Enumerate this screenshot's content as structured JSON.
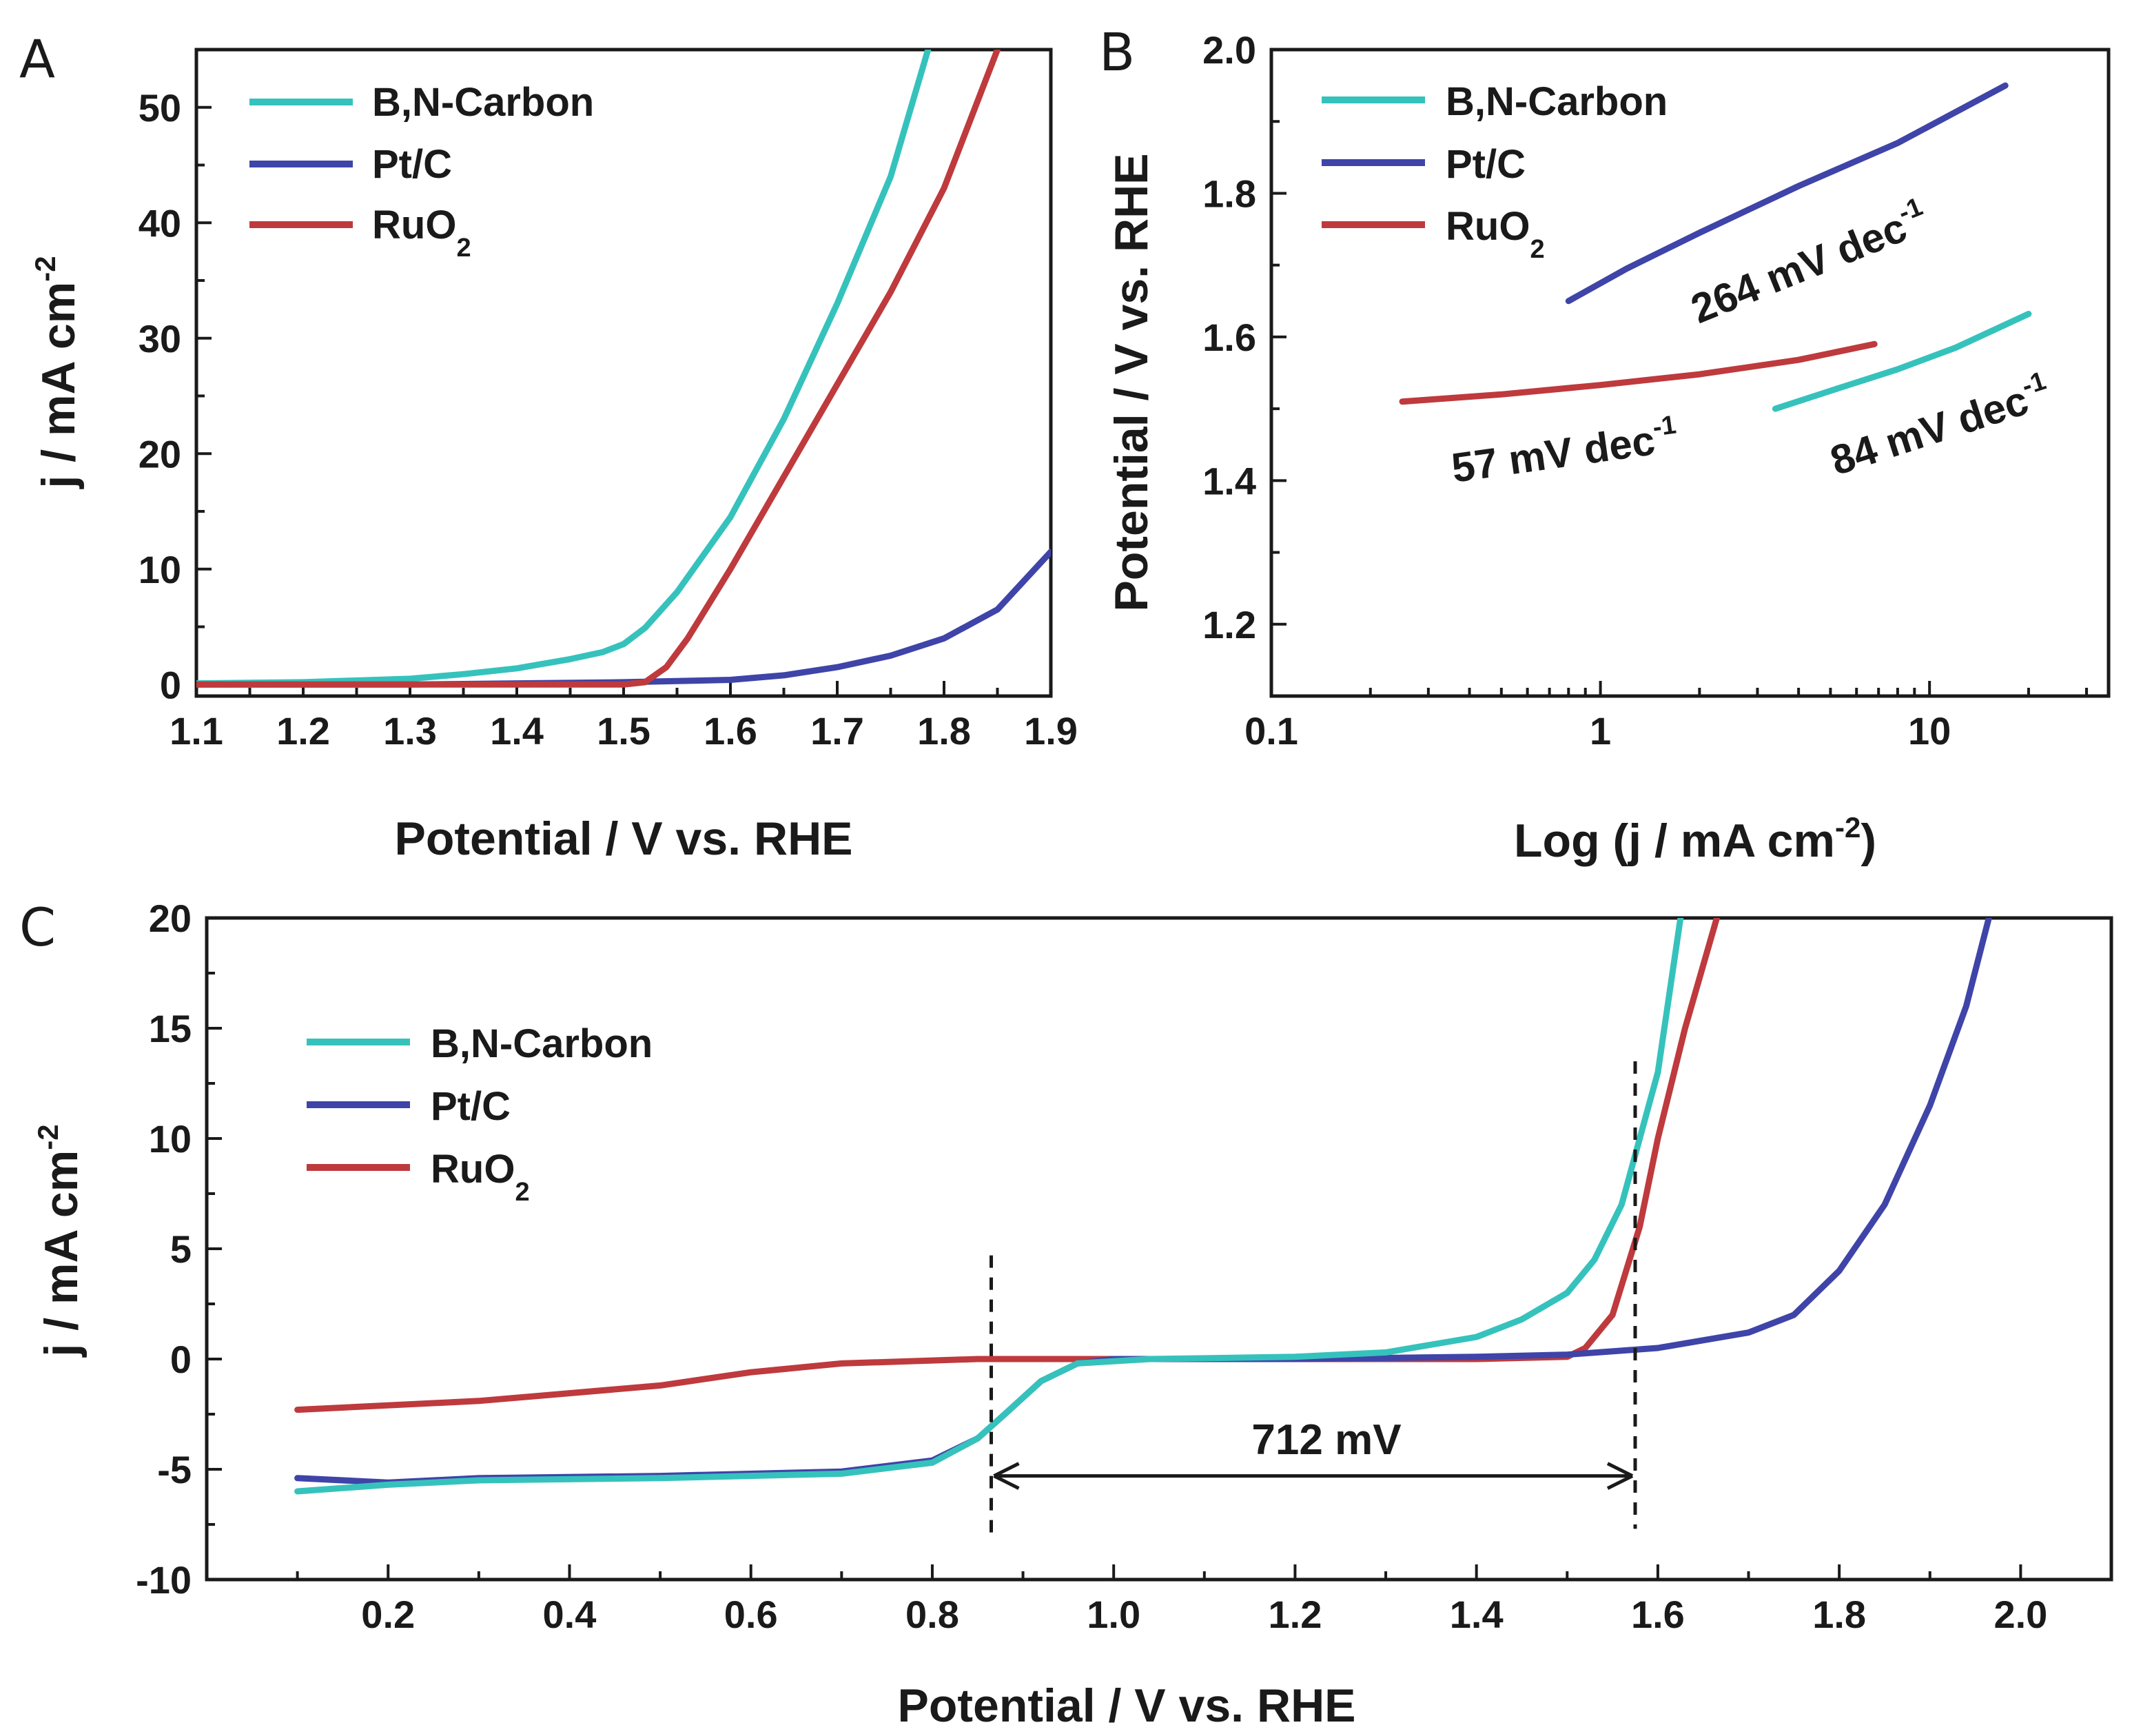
{
  "colors": {
    "bn_carbon": "#36C2BC",
    "pt_c": "#3F44A8",
    "ruo2": "#BE3A3D",
    "ink": "#1a1a1a"
  },
  "chart_data": [
    {
      "panel": "A",
      "type": "line",
      "xlabel": "Potential / V vs. RHE",
      "ylabel": "j / mA cm-2",
      "xlim": [
        1.1,
        1.9
      ],
      "ylim": [
        -1,
        55
      ],
      "xticks": [
        1.1,
        1.2,
        1.3,
        1.4,
        1.5,
        1.6,
        1.7,
        1.8,
        1.9
      ],
      "yticks": [
        0,
        10,
        20,
        30,
        40,
        50
      ],
      "legend": {
        "position": "top-left",
        "entries": [
          "B,N-Carbon",
          "Pt/C",
          "RuO2"
        ]
      },
      "series": [
        {
          "name": "B,N-Carbon",
          "color_key": "bn_carbon",
          "points": [
            [
              1.1,
              0.1
            ],
            [
              1.2,
              0.2
            ],
            [
              1.3,
              0.5
            ],
            [
              1.35,
              0.9
            ],
            [
              1.4,
              1.4
            ],
            [
              1.45,
              2.2
            ],
            [
              1.48,
              2.8
            ],
            [
              1.5,
              3.5
            ],
            [
              1.52,
              4.9
            ],
            [
              1.55,
              8
            ],
            [
              1.6,
              14.5
            ],
            [
              1.65,
              23
            ],
            [
              1.7,
              33
            ],
            [
              1.75,
              44
            ],
            [
              1.785,
              55
            ]
          ]
        },
        {
          "name": "Pt/C",
          "color_key": "pt_c",
          "points": [
            [
              1.1,
              0
            ],
            [
              1.3,
              0
            ],
            [
              1.5,
              0.2
            ],
            [
              1.6,
              0.4
            ],
            [
              1.65,
              0.8
            ],
            [
              1.7,
              1.5
            ],
            [
              1.75,
              2.5
            ],
            [
              1.8,
              4
            ],
            [
              1.85,
              6.5
            ],
            [
              1.9,
              11.5
            ]
          ]
        },
        {
          "name": "RuO2",
          "color_key": "ruo2",
          "points": [
            [
              1.1,
              0
            ],
            [
              1.3,
              0
            ],
            [
              1.5,
              0
            ],
            [
              1.52,
              0.2
            ],
            [
              1.54,
              1.5
            ],
            [
              1.56,
              4
            ],
            [
              1.6,
              10
            ],
            [
              1.65,
              18
            ],
            [
              1.7,
              26
            ],
            [
              1.75,
              34
            ],
            [
              1.8,
              43
            ],
            [
              1.85,
              55
            ]
          ]
        }
      ]
    },
    {
      "panel": "B",
      "type": "line",
      "xscale": "log",
      "xlabel": "Log (j / mA cm-2)",
      "ylabel": "Potential / V vs. RHE",
      "xlim": [
        0.1,
        35
      ],
      "ylim": [
        1.1,
        2.0
      ],
      "xticks": [
        0.1,
        1,
        10
      ],
      "xtick_labels": [
        "0.1",
        "1",
        "10"
      ],
      "yticks": [
        1.2,
        1.4,
        1.6,
        1.8,
        2.0
      ],
      "legend": {
        "position": "top-left",
        "entries": [
          "B,N-Carbon",
          "Pt/C",
          "RuO2"
        ]
      },
      "series": [
        {
          "name": "B,N-Carbon",
          "color_key": "bn_carbon",
          "points": [
            [
              3.4,
              1.5
            ],
            [
              5,
              1.525
            ],
            [
              8,
              1.555
            ],
            [
              12,
              1.585
            ],
            [
              20,
              1.632
            ]
          ]
        },
        {
          "name": "Pt/C",
          "color_key": "pt_c",
          "points": [
            [
              0.8,
              1.65
            ],
            [
              1.2,
              1.695
            ],
            [
              2,
              1.745
            ],
            [
              4,
              1.81
            ],
            [
              8,
              1.87
            ],
            [
              17,
              1.95
            ]
          ]
        },
        {
          "name": "RuO2",
          "color_key": "ruo2",
          "points": [
            [
              0.25,
              1.51
            ],
            [
              0.5,
              1.52
            ],
            [
              1,
              1.533
            ],
            [
              2,
              1.548
            ],
            [
              4,
              1.568
            ],
            [
              6.8,
              1.59
            ]
          ]
        }
      ],
      "annotations": [
        {
          "text": "264 mV dec",
          "sup": "-1",
          "color_key": "pt_c"
        },
        {
          "text": "57 mV dec",
          "sup": "-1",
          "color_key": "ruo2"
        },
        {
          "text": "84 mV dec",
          "sup": "-1",
          "color_key": "bn_carbon"
        }
      ]
    },
    {
      "panel": "C",
      "type": "line",
      "xlabel": "Potential / V vs. RHE",
      "ylabel": "j / mA cm-2",
      "xlim": [
        0,
        2.1
      ],
      "ylim": [
        -10,
        20
      ],
      "xticks": [
        0.2,
        0.4,
        0.6,
        0.8,
        1.0,
        1.2,
        1.4,
        1.6,
        1.8,
        2.0
      ],
      "xtick_labels": [
        "0.2",
        "0.4",
        "0.6",
        "0.8",
        "1.0",
        "1.2",
        "1.4",
        "1.6",
        "1.8",
        "2.0"
      ],
      "yticks": [
        -10,
        -5,
        0,
        5,
        10,
        15,
        20
      ],
      "legend": {
        "position": "top-left",
        "entries": [
          "B,N-Carbon",
          "Pt/C",
          "RuO2"
        ]
      },
      "series": [
        {
          "name": "RuO2",
          "color_key": "ruo2",
          "points": [
            [
              0.1,
              -2.3
            ],
            [
              0.3,
              -1.9
            ],
            [
              0.5,
              -1.2
            ],
            [
              0.6,
              -0.6
            ],
            [
              0.7,
              -0.2
            ],
            [
              0.85,
              0
            ],
            [
              1.0,
              0
            ],
            [
              1.2,
              0
            ],
            [
              1.4,
              0
            ],
            [
              1.5,
              0.1
            ],
            [
              1.52,
              0.5
            ],
            [
              1.55,
              2
            ],
            [
              1.58,
              6
            ],
            [
              1.6,
              10
            ],
            [
              1.63,
              15
            ],
            [
              1.665,
              20
            ]
          ]
        },
        {
          "name": "Pt/C",
          "color_key": "pt_c",
          "points": [
            [
              0.1,
              -5.4
            ],
            [
              0.2,
              -5.6
            ],
            [
              0.3,
              -5.4
            ],
            [
              0.5,
              -5.3
            ],
            [
              0.7,
              -5.1
            ],
            [
              0.8,
              -4.6
            ],
            [
              0.85,
              -3.6
            ],
            [
              0.88,
              -2.5
            ],
            [
              0.92,
              -1
            ],
            [
              0.96,
              -0.2
            ],
            [
              1.0,
              0
            ],
            [
              1.2,
              0
            ],
            [
              1.4,
              0.1
            ],
            [
              1.5,
              0.2
            ],
            [
              1.6,
              0.5
            ],
            [
              1.7,
              1.2
            ],
            [
              1.75,
              2
            ],
            [
              1.8,
              4
            ],
            [
              1.85,
              7
            ],
            [
              1.9,
              11.5
            ],
            [
              1.94,
              16
            ],
            [
              1.965,
              20
            ]
          ]
        },
        {
          "name": "B,N-Carbon",
          "color_key": "bn_carbon",
          "points": [
            [
              0.1,
              -6
            ],
            [
              0.2,
              -5.7
            ],
            [
              0.3,
              -5.5
            ],
            [
              0.5,
              -5.4
            ],
            [
              0.7,
              -5.2
            ],
            [
              0.8,
              -4.7
            ],
            [
              0.85,
              -3.6
            ],
            [
              0.88,
              -2.5
            ],
            [
              0.92,
              -1
            ],
            [
              0.96,
              -0.2
            ],
            [
              1.04,
              0
            ],
            [
              1.2,
              0.1
            ],
            [
              1.3,
              0.3
            ],
            [
              1.4,
              1
            ],
            [
              1.45,
              1.8
            ],
            [
              1.5,
              3
            ],
            [
              1.53,
              4.5
            ],
            [
              1.56,
              7
            ],
            [
              1.6,
              13
            ],
            [
              1.625,
              20
            ]
          ]
        }
      ],
      "annotations": [
        {
          "text": "712 mV"
        }
      ]
    }
  ],
  "labels": {
    "panel_a": "A",
    "panel_b": "B",
    "panel_c": "C",
    "xlabel_a": "Potential / V vs. RHE",
    "xlabel_b": "Log (j / mA cm",
    "xlabel_b_sup": "-2",
    "xlabel_b_end": ")",
    "ylabel_a": "j / mA cm",
    "ylabel_a_sup": "-2",
    "ylabel_b": "Potential / V vs. RHE",
    "xlabel_c": "Potential / V vs. RHE",
    "ylabel_c": "j / mA cm",
    "ylabel_c_sup": "-2",
    "legend_bn": "B,N-Carbon",
    "legend_pt": "Pt/C",
    "legend_ru": "RuO",
    "legend_ru_sub": "2",
    "ann_pt": "264 mV dec",
    "ann_ru": "57 mV dec",
    "ann_bn": "84 mV dec",
    "ann_sup": "-1",
    "ann_gap": "712 mV",
    "xticks_a": [
      "1.1",
      "1.2",
      "1.3",
      "1.4",
      "1.5",
      "1.6",
      "1.7",
      "1.8",
      "1.9"
    ],
    "yticks_a": [
      "0",
      "10",
      "20",
      "30",
      "40",
      "50"
    ],
    "xticks_b": [
      "0.1",
      "1",
      "10"
    ],
    "yticks_b": [
      "1.2",
      "1.4",
      "1.6",
      "1.8",
      "2.0"
    ],
    "xticks_c": [
      "0.2",
      "0.4",
      "0.6",
      "0.8",
      "1.0",
      "1.2",
      "1.4",
      "1.6",
      "1.8",
      "2.0"
    ],
    "yticks_c": [
      "-10",
      "-5",
      "0",
      "5",
      "10",
      "15",
      "20"
    ]
  }
}
